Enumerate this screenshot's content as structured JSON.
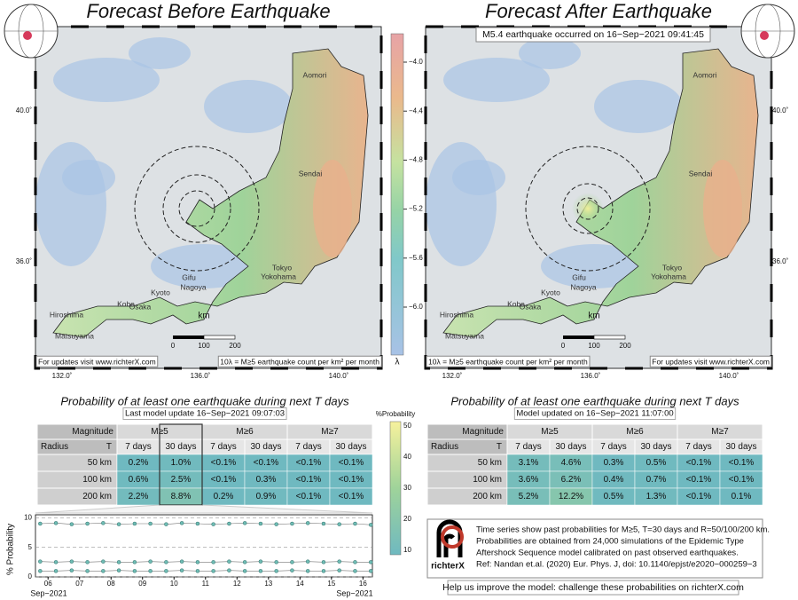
{
  "maps": [
    {
      "title": "Forecast Before Earthquake",
      "cities": [
        "Aomori",
        "Sendai",
        "Tokyo",
        "Yokohama",
        "Gifu",
        "Nagoya",
        "Kyoto",
        "Kobe",
        "Osaka",
        "Hiroshima",
        "Matsuyama"
      ],
      "lat_labels": [
        "40.0˚",
        "36.0˚"
      ],
      "lon_labels": [
        "132.0˚",
        "136.0˚",
        "140.0˚"
      ],
      "scale": {
        "unit": "km",
        "labels": [
          "0",
          "100",
          "200"
        ]
      },
      "notes": [
        "For updates visit www.richterX.com",
        "10λ = M≥5 earthquake count per km² per month"
      ]
    },
    {
      "title": "Forecast After Earthquake",
      "annotation": "M5.4 earthquake occurred on 16−Sep−2021 09:41:45",
      "cities": [
        "Aomori",
        "Sendai",
        "Tokyo",
        "Yokohama",
        "Gifu",
        "Nagoya",
        "Kyoto",
        "Kobe",
        "Osaka",
        "Hiroshima",
        "Matsuyama"
      ],
      "lat_labels": [
        "40.0˚",
        "36.0˚"
      ],
      "lon_labels": [
        "132.0˚",
        "136.0˚",
        "140.0˚"
      ],
      "scale": {
        "unit": "km",
        "labels": [
          "0",
          "100",
          "200"
        ]
      },
      "notes": [
        "10λ = M≥5 earthquake count per km² per month",
        "For updates visit www.richterX.com"
      ]
    }
  ],
  "lambda_colorbar": {
    "ticks": [
      "−4.0",
      "−4.4",
      "−4.8",
      "−5.2",
      "−5.6",
      "−6.0"
    ],
    "label": "λ"
  },
  "probability_colorbar": {
    "label": "%Probability",
    "ticks": [
      "50",
      "40",
      "30",
      "20",
      "10"
    ]
  },
  "tables": [
    {
      "title": "Probability of at least one earthquake during next T days",
      "subtitle": "Last model update 16−Sep−2021 09:07:03",
      "magnitude_label": "Magnitude",
      "radius_label": "Radius",
      "t_label": "T",
      "magnitudes": [
        "M≥5",
        "M≥6",
        "M≥7"
      ],
      "periods": [
        "7 days",
        "30 days",
        "7 days",
        "30 days",
        "7 days",
        "30 days"
      ],
      "rows": [
        {
          "radius": "50 km",
          "cells": [
            "0.2%",
            "1.0%",
            "<0.1%",
            "<0.1%",
            "<0.1%",
            "<0.1%"
          ]
        },
        {
          "radius": "100 km",
          "cells": [
            "0.6%",
            "2.5%",
            "<0.1%",
            "0.3%",
            "<0.1%",
            "<0.1%"
          ]
        },
        {
          "radius": "200 km",
          "cells": [
            "2.2%",
            "8.8%",
            "0.2%",
            "0.9%",
            "<0.1%",
            "<0.1%"
          ]
        }
      ]
    },
    {
      "title": "Probability of at least one earthquake during next T days",
      "subtitle": "Model updated on 16−Sep−2021 11:07:00",
      "magnitude_label": "Magnitude",
      "radius_label": "Radius",
      "t_label": "T",
      "magnitudes": [
        "M≥5",
        "M≥6",
        "M≥7"
      ],
      "periods": [
        "7 days",
        "30 days",
        "7 days",
        "30 days",
        "7 days",
        "30 days"
      ],
      "rows": [
        {
          "radius": "50 km",
          "cells": [
            "3.1%",
            "4.6%",
            "0.3%",
            "0.5%",
            "<0.1%",
            "<0.1%"
          ]
        },
        {
          "radius": "100 km",
          "cells": [
            "3.6%",
            "6.2%",
            "0.4%",
            "0.7%",
            "<0.1%",
            "<0.1%"
          ]
        },
        {
          "radius": "200 km",
          "cells": [
            "5.2%",
            "12.2%",
            "0.5%",
            "1.3%",
            "<0.1%",
            "0.1%"
          ]
        }
      ]
    }
  ],
  "chart_data": {
    "type": "line",
    "ylabel": "% Probability",
    "x": [
      5.75,
      6.25,
      6.75,
      7.25,
      7.75,
      8.25,
      8.75,
      9.25,
      9.75,
      10.25,
      10.75,
      11.25,
      11.75,
      12.25,
      12.75,
      13.25,
      13.75,
      14.25,
      14.75,
      15.25,
      15.75,
      16.25
    ],
    "series": [
      {
        "color": "#6fbcb4",
        "values": [
          9.0,
          9.1,
          8.9,
          9.0,
          9.1,
          8.9,
          9.0,
          9.0,
          8.9,
          9.1,
          9.0,
          8.9,
          9.0,
          9.1,
          9.0,
          8.9,
          9.0,
          9.1,
          9.0,
          8.9,
          9.0,
          8.8
        ]
      },
      {
        "color": "#6fbcb4",
        "values": [
          2.6,
          2.5,
          2.6,
          2.5,
          2.6,
          2.5,
          2.5,
          2.6,
          2.5,
          2.6,
          2.5,
          2.5,
          2.6,
          2.5,
          2.6,
          2.5,
          2.5,
          2.6,
          2.5,
          2.6,
          2.5,
          2.5
        ]
      },
      {
        "color": "#6fbcb4",
        "values": [
          1.0,
          1.0,
          1.1,
          1.0,
          1.0,
          1.1,
          1.0,
          1.0,
          1.0,
          1.1,
          1.0,
          1.0,
          1.1,
          1.0,
          1.0,
          1.0,
          1.1,
          1.0,
          1.0,
          1.1,
          1.0,
          1.0
        ]
      }
    ],
    "xlim": [
      5.6,
      16.3
    ],
    "xticks": [
      {
        "value": 6,
        "label": "06"
      },
      {
        "value": 7,
        "label": "07"
      },
      {
        "value": 8,
        "label": "08"
      },
      {
        "value": 9,
        "label": "09"
      },
      10,
      11,
      12,
      13,
      14,
      15,
      16
    ],
    "x_sublabels": [
      "Sep−2021",
      "Sep−2021"
    ],
    "ylim": [
      0,
      10.5
    ],
    "yticks": [
      0,
      5,
      10
    ],
    "grid": true
  },
  "info": {
    "logo": "richterX",
    "lines": [
      "Time series show past probabilities for M≥5, T=30 days and R=50/100/200 km.",
      "Probabilities are obtained from 24,000 simulations of the Epidemic Type",
      "Aftershock Sequence model calibrated on past observed earthquakes.",
      "Ref: Nandan et.al. (2020) Eur. Phys. J, doi: 10.1140/epjst/e2020−000259−3"
    ]
  },
  "footer": "Help us improve the model: challenge these probabilities on richterX.com"
}
